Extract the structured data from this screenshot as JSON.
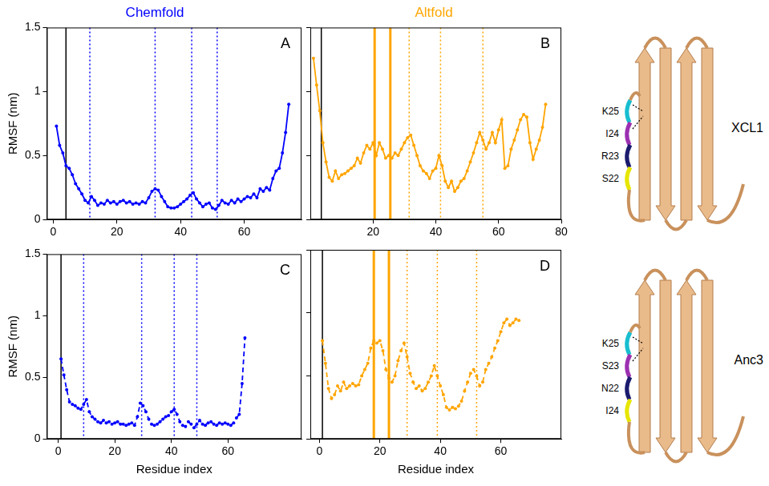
{
  "chart_data": [
    {
      "type": "line",
      "panel": "A",
      "title": "Chemfold",
      "ylabel": "RMSF (nm)",
      "x": [
        1,
        2,
        3,
        4,
        5,
        6,
        7,
        8,
        9,
        10,
        11,
        12,
        13,
        14,
        15,
        16,
        17,
        18,
        19,
        20,
        21,
        22,
        23,
        24,
        25,
        26,
        27,
        28,
        29,
        30,
        31,
        32,
        33,
        34,
        35,
        36,
        37,
        38,
        39,
        40,
        41,
        42,
        43,
        44,
        45,
        46,
        47,
        48,
        49,
        50,
        51,
        52,
        53,
        54,
        55,
        56,
        57,
        58,
        59,
        60,
        61,
        62,
        63,
        64,
        65,
        66,
        67,
        68,
        69,
        70,
        71,
        72,
        73,
        74
      ],
      "series": [
        {
          "color": "#0000ff",
          "marker": "circle",
          "line_style": "solid",
          "values": [
            0.73,
            0.58,
            0.52,
            0.42,
            0.4,
            0.35,
            0.28,
            0.24,
            0.2,
            0.15,
            0.13,
            0.18,
            0.15,
            0.11,
            0.13,
            0.12,
            0.15,
            0.13,
            0.14,
            0.12,
            0.14,
            0.15,
            0.13,
            0.14,
            0.12,
            0.13,
            0.12,
            0.14,
            0.13,
            0.17,
            0.22,
            0.24,
            0.23,
            0.18,
            0.14,
            0.1,
            0.09,
            0.09,
            0.1,
            0.12,
            0.14,
            0.16,
            0.19,
            0.21,
            0.16,
            0.13,
            0.1,
            0.12,
            0.13,
            0.09,
            0.08,
            0.11,
            0.15,
            0.13,
            0.12,
            0.15,
            0.13,
            0.16,
            0.14,
            0.16,
            0.18,
            0.17,
            0.2,
            0.17,
            0.24,
            0.22,
            0.25,
            0.23,
            0.32,
            0.38,
            0.4,
            0.52,
            0.68,
            0.9
          ]
        }
      ],
      "vlines": [
        {
          "x": 4,
          "color": "#000000",
          "line_style": "solid"
        },
        {
          "x": 11.5,
          "color": "#0000ff",
          "line_style": "dotted"
        },
        {
          "x": 32,
          "color": "#0000ff",
          "line_style": "dotted"
        },
        {
          "x": 43.5,
          "color": "#0000ff",
          "line_style": "dotted"
        },
        {
          "x": 51.5,
          "color": "#0000ff",
          "line_style": "dotted"
        }
      ],
      "xlim": [
        -2,
        78
      ],
      "xticks": [
        0,
        20,
        40,
        60
      ],
      "ylim": [
        0,
        1.5
      ],
      "yticks": [
        0,
        0.5,
        1,
        1.5
      ],
      "grid": false
    },
    {
      "type": "line",
      "panel": "B",
      "title": "Altfold",
      "tick_labels": "x",
      "x": [
        1,
        2,
        3,
        4,
        5,
        6,
        7,
        8,
        9,
        10,
        11,
        12,
        13,
        14,
        15,
        16,
        17,
        18,
        19,
        20,
        21,
        22,
        23,
        24,
        25,
        26,
        27,
        28,
        29,
        30,
        31,
        32,
        33,
        34,
        35,
        36,
        37,
        38,
        39,
        40,
        41,
        42,
        43,
        44,
        45,
        46,
        47,
        48,
        49,
        50,
        51,
        52,
        53,
        54,
        55,
        56,
        57,
        58,
        59,
        60,
        61,
        62,
        63,
        64,
        65,
        66,
        67,
        68,
        69,
        70,
        71,
        72,
        73,
        74,
        75
      ],
      "series": [
        {
          "color": "#ffa500",
          "marker": "circle",
          "line_style": "solid",
          "values": [
            1.26,
            1.05,
            0.85,
            0.6,
            0.45,
            0.33,
            0.3,
            0.38,
            0.32,
            0.35,
            0.36,
            0.38,
            0.4,
            0.42,
            0.48,
            0.44,
            0.52,
            0.58,
            0.55,
            0.6,
            0.5,
            0.6,
            0.55,
            0.48,
            0.5,
            0.48,
            0.52,
            0.5,
            0.55,
            0.6,
            0.64,
            0.66,
            0.58,
            0.5,
            0.42,
            0.38,
            0.36,
            0.32,
            0.38,
            0.4,
            0.5,
            0.42,
            0.3,
            0.25,
            0.3,
            0.22,
            0.25,
            0.3,
            0.32,
            0.38,
            0.45,
            0.52,
            0.6,
            0.68,
            0.62,
            0.55,
            0.6,
            0.68,
            0.6,
            0.7,
            0.78,
            0.4,
            0.42,
            0.55,
            0.62,
            0.7,
            0.78,
            0.82,
            0.8,
            0.6,
            0.47,
            0.55,
            0.62,
            0.72,
            0.9
          ]
        }
      ],
      "vlines": [
        {
          "x": 3.5,
          "color": "#000000",
          "line_style": "solid"
        },
        {
          "x": 20.5,
          "color": "#ffa500",
          "line_style": "solid"
        },
        {
          "x": 25.5,
          "color": "#ffa500",
          "line_style": "solid"
        },
        {
          "x": 31.5,
          "color": "#ffa500",
          "line_style": "dotted"
        },
        {
          "x": 41.5,
          "color": "#ffa500",
          "line_style": "dotted"
        },
        {
          "x": 55,
          "color": "#ffa500",
          "line_style": "dotted"
        }
      ],
      "xlim": [
        0,
        80
      ],
      "xticks": [
        20,
        40,
        60,
        80
      ],
      "ylim": [
        0,
        1.5
      ],
      "yticks": [
        0,
        0.5,
        1,
        1.5
      ],
      "grid": false
    },
    {
      "type": "line",
      "panel": "C",
      "ylabel": "RMSF (nm)",
      "xlabel": "Residue index",
      "x": [
        1,
        2,
        3,
        4,
        5,
        6,
        7,
        8,
        9,
        10,
        11,
        12,
        13,
        14,
        15,
        16,
        17,
        18,
        19,
        20,
        21,
        22,
        23,
        24,
        25,
        26,
        27,
        28,
        29,
        30,
        31,
        32,
        33,
        34,
        35,
        36,
        37,
        38,
        39,
        40,
        41,
        42,
        43,
        44,
        45,
        46,
        47,
        48,
        49,
        50,
        51,
        52,
        53,
        54,
        55,
        56,
        57,
        58,
        59,
        60,
        61,
        62,
        63,
        64,
        65,
        66
      ],
      "series": [
        {
          "color": "#0000ff",
          "marker": "circle",
          "line_style": "dashed",
          "values": [
            0.65,
            0.52,
            0.4,
            0.3,
            0.28,
            0.27,
            0.25,
            0.24,
            0.28,
            0.32,
            0.22,
            0.18,
            0.16,
            0.14,
            0.13,
            0.15,
            0.13,
            0.14,
            0.12,
            0.13,
            0.14,
            0.12,
            0.12,
            0.11,
            0.12,
            0.13,
            0.11,
            0.18,
            0.29,
            0.27,
            0.22,
            0.16,
            0.12,
            0.11,
            0.12,
            0.14,
            0.16,
            0.18,
            0.19,
            0.22,
            0.24,
            0.2,
            0.14,
            0.11,
            0.1,
            0.14,
            0.12,
            0.09,
            0.12,
            0.15,
            0.12,
            0.11,
            0.13,
            0.14,
            0.12,
            0.11,
            0.13,
            0.12,
            0.13,
            0.12,
            0.11,
            0.13,
            0.17,
            0.2,
            0.45,
            0.82
          ]
        }
      ],
      "vlines": [
        {
          "x": 1,
          "color": "#000000",
          "line_style": "solid"
        },
        {
          "x": 9,
          "color": "#0000ff",
          "line_style": "dotted"
        },
        {
          "x": 29.5,
          "color": "#0000ff",
          "line_style": "dotted"
        },
        {
          "x": 41,
          "color": "#0000ff",
          "line_style": "dotted"
        },
        {
          "x": 49,
          "color": "#0000ff",
          "line_style": "dotted"
        }
      ],
      "xlim": [
        -4,
        86
      ],
      "xticks": [
        0,
        20,
        40,
        60
      ],
      "ylim": [
        0,
        1.5
      ],
      "yticks": [
        0,
        0.5,
        1,
        1.5
      ],
      "grid": false
    },
    {
      "type": "line",
      "panel": "D",
      "xlabel": "Residue index",
      "tick_labels": "x",
      "x": [
        1,
        2,
        3,
        4,
        5,
        6,
        7,
        8,
        9,
        10,
        11,
        12,
        13,
        14,
        15,
        16,
        17,
        18,
        19,
        20,
        21,
        22,
        23,
        24,
        25,
        26,
        27,
        28,
        29,
        30,
        31,
        32,
        33,
        34,
        35,
        36,
        37,
        38,
        39,
        40,
        41,
        42,
        43,
        44,
        45,
        46,
        47,
        48,
        49,
        50,
        51,
        52,
        53,
        54,
        55,
        56,
        57,
        58,
        59,
        60,
        61,
        62,
        63,
        64,
        65,
        66
      ],
      "series": [
        {
          "color": "#ffa500",
          "marker": "circle",
          "line_style": "dashed",
          "values": [
            0.78,
            0.6,
            0.4,
            0.32,
            0.35,
            0.42,
            0.38,
            0.45,
            0.4,
            0.42,
            0.44,
            0.42,
            0.43,
            0.5,
            0.55,
            0.6,
            0.72,
            0.78,
            0.76,
            0.78,
            0.7,
            0.55,
            0.48,
            0.45,
            0.5,
            0.62,
            0.7,
            0.76,
            0.65,
            0.52,
            0.45,
            0.4,
            0.42,
            0.38,
            0.4,
            0.45,
            0.5,
            0.58,
            0.5,
            0.42,
            0.35,
            0.25,
            0.23,
            0.25,
            0.24,
            0.26,
            0.3,
            0.38,
            0.45,
            0.52,
            0.55,
            0.5,
            0.42,
            0.45,
            0.55,
            0.6,
            0.65,
            0.72,
            0.78,
            0.85,
            0.92,
            0.95,
            0.9,
            0.92,
            0.95,
            0.94
          ]
        }
      ],
      "vlines": [
        {
          "x": 1,
          "color": "#000000",
          "line_style": "solid"
        },
        {
          "x": 18,
          "color": "#ffa500",
          "line_style": "solid"
        },
        {
          "x": 23,
          "color": "#ffa500",
          "line_style": "solid"
        },
        {
          "x": 29,
          "color": "#ffa500",
          "line_style": "dotted"
        },
        {
          "x": 39,
          "color": "#ffa500",
          "line_style": "dotted"
        },
        {
          "x": 52,
          "color": "#ffa500",
          "line_style": "dotted"
        }
      ],
      "xlim": [
        -3,
        80
      ],
      "xticks": [
        0,
        20,
        40,
        60
      ],
      "ylim": [
        0,
        1.5
      ],
      "yticks": [
        0,
        0.5,
        1,
        1.5
      ],
      "grid": false
    }
  ],
  "structures": [
    {
      "name": "XCL1",
      "residues": [
        "K25",
        "I24",
        "R23",
        "S22"
      ]
    },
    {
      "name": "Anc3",
      "residues": [
        "K25",
        "S23",
        "N22",
        "I24"
      ]
    }
  ]
}
